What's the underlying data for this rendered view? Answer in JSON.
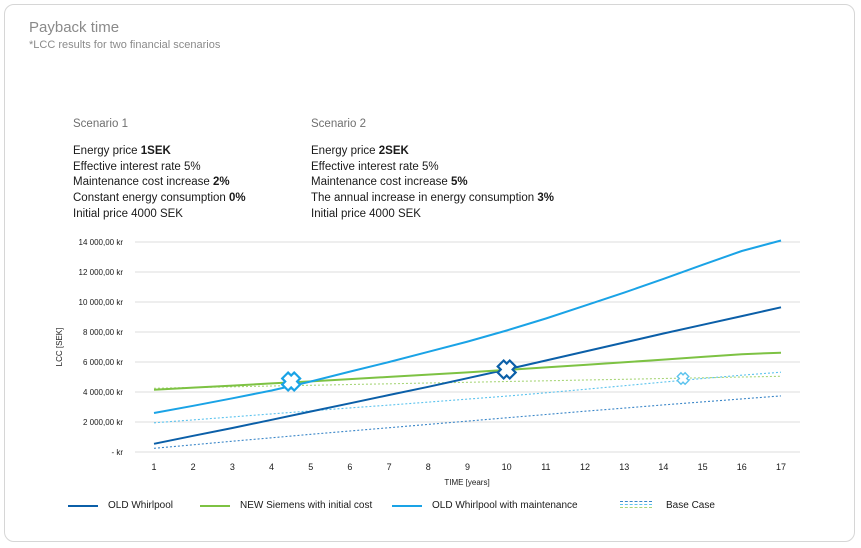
{
  "title": "Payback time",
  "subtitle": "*LCC results for two financial scenarios",
  "scenario1": {
    "heading": "Scenario 1",
    "lines": [
      {
        "pre": "Energy price ",
        "bold": "1SEK"
      },
      {
        "pre": "Effective interest rate 5%",
        "bold": ""
      },
      {
        "pre": "Maintenance cost increase ",
        "bold": "2%"
      },
      {
        "pre": "Constant energy consumption ",
        "bold": "0%"
      },
      {
        "pre": "Initial price 4000 SEK",
        "bold": ""
      }
    ]
  },
  "scenario2": {
    "heading": "Scenario 2",
    "lines": [
      {
        "pre": "Energy price ",
        "bold": "2SEK"
      },
      {
        "pre": "Effective interest rate 5%",
        "bold": ""
      },
      {
        "pre": "Maintenance cost increase ",
        "bold": "5%"
      },
      {
        "pre": "The annual increase in energy consumption ",
        "bold": "3%"
      },
      {
        "pre": "Initial price 4000 SEK",
        "bold": ""
      }
    ]
  },
  "chart_data": {
    "type": "line",
    "xlabel": "TIME [years]",
    "ylabel": "LCC [SEK]",
    "x": [
      1,
      2,
      3,
      4,
      5,
      6,
      7,
      8,
      9,
      10,
      11,
      12,
      13,
      14,
      15,
      16,
      17
    ],
    "ylim": [
      0,
      14000
    ],
    "yticks": [
      {
        "value": 0,
        "label": "-   kr"
      },
      {
        "value": 2000,
        "label": "2 000,00 kr"
      },
      {
        "value": 4000,
        "label": "4 000,00 kr"
      },
      {
        "value": 6000,
        "label": "6 000,00 kr"
      },
      {
        "value": 8000,
        "label": "8 000,00 kr"
      },
      {
        "value": 10000,
        "label": "10 000,00 kr"
      },
      {
        "value": 12000,
        "label": "12 000,00 kr"
      },
      {
        "value": 14000,
        "label": "14 000,00 kr"
      }
    ],
    "grid": true,
    "legend_position": "bottom",
    "series": [
      {
        "name": "OLD Whirlpool",
        "color": "#0b5fa8",
        "dashed": false,
        "values": [
          550,
          1080,
          1600,
          2150,
          2700,
          3250,
          3800,
          4350,
          4920,
          5500,
          6100,
          6700,
          7300,
          7900,
          8480,
          9060,
          9650
        ]
      },
      {
        "name": "NEW Siemens with initial cost",
        "color": "#7dc243",
        "dashed": false,
        "values": [
          4150,
          4290,
          4430,
          4570,
          4710,
          4860,
          5010,
          5160,
          5310,
          5470,
          5640,
          5810,
          5980,
          6160,
          6340,
          6520,
          6620
        ]
      },
      {
        "name": "OLD Whirlpool with maintenance",
        "color": "#1aa3e6",
        "dashed": false,
        "values": [
          2600,
          3080,
          3580,
          4100,
          4700,
          5360,
          6000,
          6680,
          7360,
          8100,
          8900,
          9760,
          10630,
          11540,
          12480,
          13400,
          14100
        ]
      },
      {
        "name": "",
        "color": "#3a86c8",
        "dashed": true,
        "values": [
          250,
          480,
          720,
          950,
          1180,
          1400,
          1620,
          1840,
          2060,
          2280,
          2500,
          2720,
          2930,
          3140,
          3340,
          3540,
          3740
        ]
      },
      {
        "name": "",
        "color": "#5cc3ee",
        "dashed": true,
        "values": [
          1950,
          2140,
          2340,
          2540,
          2740,
          2940,
          3130,
          3330,
          3530,
          3730,
          3950,
          4180,
          4420,
          4660,
          4900,
          5120,
          5320
        ]
      },
      {
        "name": "",
        "color": "#a9d67a",
        "dashed": true,
        "values": [
          4250,
          4300,
          4350,
          4400,
          4450,
          4500,
          4550,
          4600,
          4650,
          4700,
          4750,
          4800,
          4850,
          4900,
          4950,
          5000,
          5050
        ]
      }
    ],
    "annotations": [
      {
        "type": "cross-marker",
        "x": 4.5,
        "y": 4700,
        "color": "#1aa3e6",
        "size": "large"
      },
      {
        "type": "cross-marker",
        "x": 10.0,
        "y": 5500,
        "color": "#0b5fa8",
        "size": "large"
      },
      {
        "type": "cross-marker",
        "x": 14.5,
        "y": 4900,
        "color": "#5cc3ee",
        "size": "small"
      }
    ]
  },
  "legend": {
    "items": [
      {
        "label": "OLD Whirlpool",
        "color": "#0b5fa8"
      },
      {
        "label": "NEW Siemens with initial cost",
        "color": "#7dc243"
      },
      {
        "label": "OLD Whirlpool with maintenance",
        "color": "#1aa3e6"
      }
    ],
    "base_case": {
      "label": "Base Case",
      "colors": [
        "#3a86c8",
        "#5cc3ee",
        "#a9d67a"
      ]
    }
  }
}
